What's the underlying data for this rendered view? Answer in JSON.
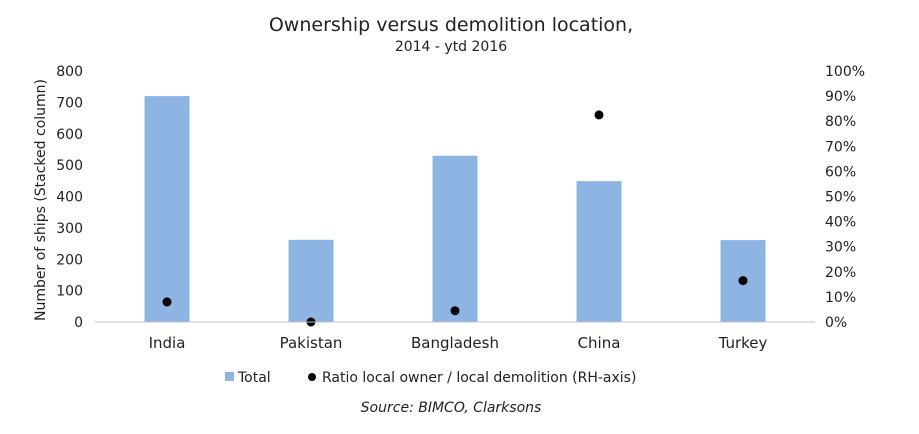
{
  "chart_data": {
    "type": "bar",
    "title": "Ownership versus demolition location,",
    "subtitle": "2014 - ytd 2016",
    "categories": [
      "India",
      "Pakistan",
      "Bangladesh",
      "China",
      "Turkey"
    ],
    "series": [
      {
        "name": "Total",
        "kind": "bar",
        "axis": "left",
        "color": "#8eb4e3",
        "values": [
          720,
          262,
          530,
          449,
          261
        ]
      },
      {
        "name": "Ratio local owner / local demolition (RH-axis)",
        "kind": "scatter",
        "axis": "right",
        "color": "#000000",
        "values": [
          0.08,
          0.0,
          0.045,
          0.825,
          0.165
        ]
      }
    ],
    "ylabel": "Number of ships (Stacked column)",
    "ylim": [
      0,
      800
    ],
    "yticks": [
      "0",
      "100",
      "200",
      "300",
      "400",
      "500",
      "600",
      "700",
      "800"
    ],
    "y2lim": [
      0,
      1
    ],
    "y2ticks": [
      "0%",
      "10%",
      "20%",
      "30%",
      "40%",
      "50%",
      "60%",
      "70%",
      "80%",
      "90%",
      "100%"
    ],
    "legend_position": "bottom",
    "grid": false,
    "source": "Source: BIMCO, Clarksons"
  }
}
